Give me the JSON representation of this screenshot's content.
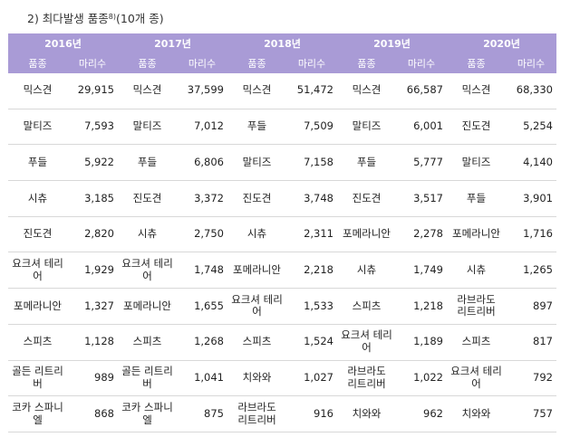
{
  "heading": {
    "text": "2)  최다발생 품종",
    "superscript": "8)",
    "suffix": "(10개 종)"
  },
  "years": [
    "2016년",
    "2017년",
    "2018년",
    "2019년",
    "2020년"
  ],
  "col_labels": {
    "breed": "품종",
    "count": "마리수"
  },
  "rows": [
    [
      [
        "믹스견",
        "29,915"
      ],
      [
        "믹스견",
        "37,599"
      ],
      [
        "믹스견",
        "51,472"
      ],
      [
        "믹스견",
        "66,587"
      ],
      [
        "믹스견",
        "68,330"
      ]
    ],
    [
      [
        "말티즈",
        "7,593"
      ],
      [
        "말티즈",
        "7,012"
      ],
      [
        "푸들",
        "7,509"
      ],
      [
        "말티즈",
        "6,001"
      ],
      [
        "진도견",
        "5,254"
      ]
    ],
    [
      [
        "푸들",
        "5,922"
      ],
      [
        "푸들",
        "6,806"
      ],
      [
        "말티즈",
        "7,158"
      ],
      [
        "푸들",
        "5,777"
      ],
      [
        "말티즈",
        "4,140"
      ]
    ],
    [
      [
        "시츄",
        "3,185"
      ],
      [
        "진도견",
        "3,372"
      ],
      [
        "진도견",
        "3,748"
      ],
      [
        "진도견",
        "3,517"
      ],
      [
        "푸들",
        "3,901"
      ]
    ],
    [
      [
        "진도견",
        "2,820"
      ],
      [
        "시츄",
        "2,750"
      ],
      [
        "시츄",
        "2,311"
      ],
      [
        "포메라니안",
        "2,278"
      ],
      [
        "포메라니안",
        "1,716"
      ]
    ],
    [
      [
        "요크셔 테리어",
        "1,929"
      ],
      [
        "요크셔 테리어",
        "1,748"
      ],
      [
        "포메라니안",
        "2,218"
      ],
      [
        "시츄",
        "1,749"
      ],
      [
        "시츄",
        "1,265"
      ]
    ],
    [
      [
        "포메라니안",
        "1,327"
      ],
      [
        "포메라니안",
        "1,655"
      ],
      [
        "요크셔 테리어",
        "1,533"
      ],
      [
        "스피츠",
        "1,218"
      ],
      [
        "라브라도\n리트리버",
        "897"
      ]
    ],
    [
      [
        "스피츠",
        "1,128"
      ],
      [
        "스피츠",
        "1,268"
      ],
      [
        "스피츠",
        "1,524"
      ],
      [
        "요크셔 테리어",
        "1,189"
      ],
      [
        "스피츠",
        "817"
      ]
    ],
    [
      [
        "골든 리트리버",
        "989"
      ],
      [
        "골든 리트리버",
        "1,041"
      ],
      [
        "치와와",
        "1,027"
      ],
      [
        "라브라도\n리트리버",
        "1,022"
      ],
      [
        "요크셔 테리어",
        "792"
      ]
    ],
    [
      [
        "코카 스파니엘",
        "868"
      ],
      [
        "코카 스파니엘",
        "875"
      ],
      [
        "라브라도\n리트리버",
        "916"
      ],
      [
        "치와와",
        "962"
      ],
      [
        "치와와",
        "757"
      ]
    ]
  ]
}
